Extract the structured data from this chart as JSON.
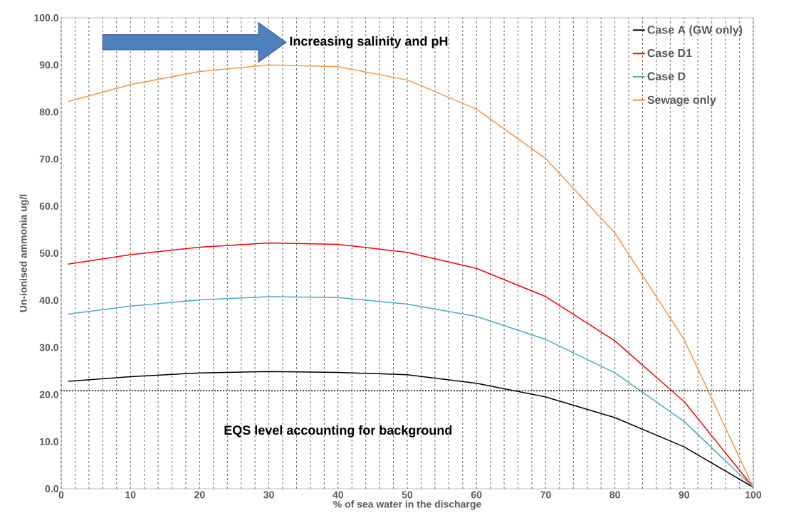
{
  "chart_data": {
    "type": "line",
    "xlabel": "% of sea water in the discharge",
    "ylabel": "Un-ionised ammonia ug/l",
    "x": [
      1,
      10,
      20,
      30,
      40,
      50,
      60,
      70,
      80,
      90,
      100
    ],
    "series": [
      {
        "name": "Case A (GW only)",
        "color": "#000000",
        "values": [
          22.8,
          23.8,
          24.6,
          24.9,
          24.7,
          24.2,
          22.4,
          19.5,
          15.1,
          8.9,
          0.3
        ]
      },
      {
        "name": "Case D1",
        "color": "#ff0000",
        "values": [
          47.7,
          49.7,
          51.3,
          52.2,
          51.9,
          50.2,
          46.8,
          40.8,
          31.4,
          18.5,
          0.3
        ]
      },
      {
        "name": "Case D",
        "color": "#4bacc6",
        "values": [
          37.1,
          38.8,
          40.1,
          40.8,
          40.6,
          39.2,
          36.6,
          31.7,
          24.6,
          14.3,
          0.3
        ]
      },
      {
        "name": "Sewage only",
        "color": "#f79646",
        "values": [
          82.2,
          85.8,
          88.6,
          90.0,
          89.6,
          86.8,
          80.6,
          70.1,
          54.3,
          31.7,
          0.3
        ]
      }
    ],
    "xlim": [
      0,
      100
    ],
    "ylim": [
      0,
      100
    ],
    "xticks": [
      {
        "value": 0,
        "label": "0"
      },
      {
        "value": 2,
        "label": null
      },
      {
        "value": 4,
        "label": null
      },
      {
        "value": 6,
        "label": null
      },
      {
        "value": 8,
        "label": null
      },
      {
        "value": 10,
        "label": "10"
      },
      {
        "value": 12,
        "label": null
      },
      {
        "value": 14,
        "label": null
      },
      {
        "value": 16,
        "label": null
      },
      {
        "value": 18,
        "label": null
      },
      {
        "value": 20,
        "label": "20"
      },
      {
        "value": 22,
        "label": null
      },
      {
        "value": 24,
        "label": null
      },
      {
        "value": 26,
        "label": null
      },
      {
        "value": 28,
        "label": null
      },
      {
        "value": 30,
        "label": "30"
      },
      {
        "value": 32,
        "label": null
      },
      {
        "value": 34,
        "label": null
      },
      {
        "value": 36,
        "label": null
      },
      {
        "value": 38,
        "label": null
      },
      {
        "value": 40,
        "label": "40"
      },
      {
        "value": 42,
        "label": null
      },
      {
        "value": 44,
        "label": null
      },
      {
        "value": 46,
        "label": null
      },
      {
        "value": 48,
        "label": null
      },
      {
        "value": 50,
        "label": "50"
      },
      {
        "value": 52,
        "label": null
      },
      {
        "value": 54,
        "label": null
      },
      {
        "value": 56,
        "label": null
      },
      {
        "value": 58,
        "label": null
      },
      {
        "value": 60,
        "label": "60"
      },
      {
        "value": 62,
        "label": null
      },
      {
        "value": 64,
        "label": null
      },
      {
        "value": 66,
        "label": null
      },
      {
        "value": 68,
        "label": null
      },
      {
        "value": 70,
        "label": "70"
      },
      {
        "value": 72,
        "label": null
      },
      {
        "value": 74,
        "label": null
      },
      {
        "value": 76,
        "label": null
      },
      {
        "value": 78,
        "label": null
      },
      {
        "value": 80,
        "label": "80"
      },
      {
        "value": 82,
        "label": null
      },
      {
        "value": 84,
        "label": null
      },
      {
        "value": 86,
        "label": null
      },
      {
        "value": 88,
        "label": null
      },
      {
        "value": 90,
        "label": "90"
      },
      {
        "value": 92,
        "label": null
      },
      {
        "value": 94,
        "label": null
      },
      {
        "value": 96,
        "label": null
      },
      {
        "value": 98,
        "label": null
      },
      {
        "value": 100,
        "label": "100"
      }
    ],
    "yticks": [
      {
        "value": 0,
        "label": "0.0"
      },
      {
        "value": 10,
        "label": "10.0"
      },
      {
        "value": 20,
        "label": "20.0"
      },
      {
        "value": 30,
        "label": "30.0"
      },
      {
        "value": 40,
        "label": "40.0"
      },
      {
        "value": 50,
        "label": "50.0"
      },
      {
        "value": 60,
        "label": "60.0"
      },
      {
        "value": 70,
        "label": "70.0"
      },
      {
        "value": 80,
        "label": "80.0"
      },
      {
        "value": 90,
        "label": "90.0"
      },
      {
        "value": 100,
        "label": "100.0"
      }
    ],
    "ref_lines": [
      {
        "axis": "y",
        "value": 20.8,
        "label": "EQS level accounting for background",
        "color": "#000000",
        "line_style": "dotted"
      }
    ],
    "annotations": [
      "Increasing salinity and pH"
    ],
    "grid": "x",
    "legend": "top right",
    "line_style": "solid",
    "marker": "none"
  }
}
